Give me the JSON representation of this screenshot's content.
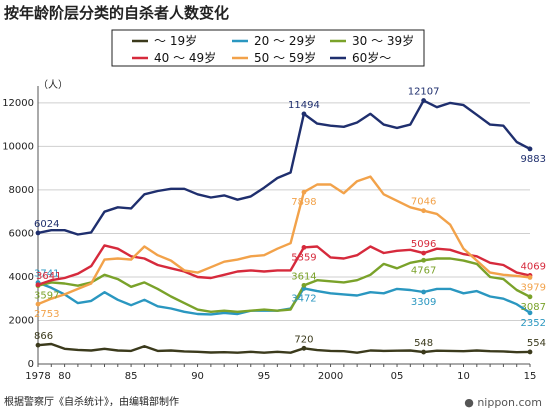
{
  "title": "按年龄阶层分类的自杀者人数变化",
  "source": "根据警察厅《自杀统计》，由编辑部制作",
  "brand": "● nippon.com",
  "chart_data": {
    "type": "line",
    "unit_label": "（人）",
    "ylim": [
      0,
      12500
    ],
    "yticks": [
      0,
      2000,
      4000,
      6000,
      8000,
      10000,
      12000
    ],
    "xlim": [
      1978,
      2015
    ],
    "xticks": [
      {
        "v": 1978,
        "label": "1978"
      },
      {
        "v": 1980,
        "label": "80"
      },
      {
        "v": 1985,
        "label": "85"
      },
      {
        "v": 1990,
        "label": "90"
      },
      {
        "v": 1995,
        "label": "95"
      },
      {
        "v": 2000,
        "label": "2000"
      },
      {
        "v": 2005,
        "label": "05"
      },
      {
        "v": 2010,
        "label": "10"
      },
      {
        "v": 2015,
        "label": "15"
      }
    ],
    "grid": true,
    "legend_position": "top",
    "x": [
      1978,
      1979,
      1980,
      1981,
      1982,
      1983,
      1984,
      1985,
      1986,
      1987,
      1988,
      1989,
      1990,
      1991,
      1992,
      1993,
      1994,
      1995,
      1996,
      1997,
      1998,
      1999,
      2000,
      2001,
      2002,
      2003,
      2004,
      2005,
      2006,
      2007,
      2008,
      2009,
      2010,
      2011,
      2012,
      2013,
      2014,
      2015
    ],
    "series": [
      {
        "name": "～ 19岁",
        "color": "#3b3a1c",
        "values": [
          866,
          920,
          700,
          650,
          620,
          700,
          620,
          600,
          820,
          600,
          620,
          580,
          560,
          530,
          540,
          520,
          560,
          520,
          560,
          520,
          720,
          640,
          600,
          590,
          520,
          620,
          600,
          610,
          620,
          548,
          610,
          600,
          590,
          620,
          590,
          580,
          540,
          554
        ]
      },
      {
        "name": "20 ～ 29岁",
        "color": "#2a97c0",
        "values": [
          3741,
          3500,
          3200,
          2800,
          2900,
          3300,
          2950,
          2700,
          2950,
          2650,
          2550,
          2400,
          2300,
          2280,
          2350,
          2300,
          2450,
          2450,
          2450,
          2550,
          3472,
          3350,
          3250,
          3200,
          3150,
          3300,
          3250,
          3450,
          3400,
          3309,
          3450,
          3450,
          3250,
          3350,
          3100,
          3000,
          2750,
          2352
        ]
      },
      {
        "name": "30 ～ 39岁",
        "color": "#7aa22a",
        "values": [
          3597,
          3750,
          3700,
          3600,
          3750,
          4100,
          3900,
          3550,
          3750,
          3450,
          3100,
          2800,
          2500,
          2400,
          2450,
          2400,
          2450,
          2500,
          2450,
          2500,
          3614,
          3850,
          3800,
          3750,
          3850,
          4100,
          4600,
          4400,
          4650,
          4767,
          4850,
          4850,
          4750,
          4600,
          4000,
          3900,
          3400,
          3087
        ]
      },
      {
        "name": "40 ～ 49岁",
        "color": "#d62a3c",
        "values": [
          3641,
          3850,
          3950,
          4150,
          4500,
          5450,
          5300,
          4950,
          4850,
          4550,
          4400,
          4250,
          4000,
          3950,
          4100,
          4250,
          4300,
          4250,
          4300,
          4300,
          5359,
          5400,
          4900,
          4850,
          5000,
          5400,
          5100,
          5200,
          5250,
          5096,
          5300,
          5250,
          5050,
          4950,
          4650,
          4550,
          4200,
          4069
        ]
      },
      {
        "name": "50 ～ 59岁",
        "color": "#f2a24a",
        "values": [
          2753,
          3000,
          3200,
          3450,
          3700,
          4800,
          4850,
          4800,
          5400,
          5000,
          4750,
          4300,
          4200,
          4450,
          4700,
          4800,
          4950,
          5000,
          5300,
          5550,
          7898,
          8250,
          8250,
          7850,
          8400,
          8614,
          7800,
          7500,
          7200,
          7046,
          6900,
          6400,
          5300,
          4750,
          4200,
          4100,
          4050,
          3979
        ]
      },
      {
        "name": "60岁～",
        "color": "#1f2f6e",
        "values": [
          6024,
          6150,
          6150,
          5950,
          6050,
          7000,
          7200,
          7150,
          7800,
          7950,
          8050,
          8050,
          7800,
          7650,
          7750,
          7550,
          7700,
          8100,
          8550,
          8800,
          11494,
          11050,
          10950,
          10900,
          11100,
          11500,
          11000,
          10850,
          11000,
          12107,
          11800,
          12000,
          11900,
          11450,
          11000,
          10950,
          10200,
          9883
        ]
      }
    ],
    "labels": [
      {
        "series": 0,
        "year": 1978,
        "text": "866",
        "pos": "above"
      },
      {
        "series": 0,
        "year": 1998,
        "text": "720",
        "pos": "above"
      },
      {
        "series": 0,
        "year": 2007,
        "text": "548",
        "pos": "above"
      },
      {
        "series": 0,
        "year": 2015,
        "text": "554",
        "pos": "above"
      },
      {
        "series": 1,
        "year": 1978,
        "text": "3741",
        "pos": "above"
      },
      {
        "series": 1,
        "year": 1998,
        "text": "3472",
        "pos": "below"
      },
      {
        "series": 1,
        "year": 2007,
        "text": "3309",
        "pos": "below"
      },
      {
        "series": 1,
        "year": 2015,
        "text": "2352",
        "pos": "below"
      },
      {
        "series": 2,
        "year": 1978,
        "text": "3597",
        "pos": "below"
      },
      {
        "series": 2,
        "year": 1998,
        "text": "3614",
        "pos": "above"
      },
      {
        "series": 2,
        "year": 2007,
        "text": "4767",
        "pos": "below"
      },
      {
        "series": 2,
        "year": 2015,
        "text": "3087",
        "pos": "below"
      },
      {
        "series": 3,
        "year": 1978,
        "text": "3641",
        "pos": "above-left"
      },
      {
        "series": 3,
        "year": 1998,
        "text": "5359",
        "pos": "below"
      },
      {
        "series": 3,
        "year": 2007,
        "text": "5096",
        "pos": "above"
      },
      {
        "series": 3,
        "year": 2015,
        "text": "4069",
        "pos": "above"
      },
      {
        "series": 4,
        "year": 1978,
        "text": "2753",
        "pos": "below"
      },
      {
        "series": 4,
        "year": 1998,
        "text": "7898",
        "pos": "below"
      },
      {
        "series": 4,
        "year": 2007,
        "text": "7046",
        "pos": "above"
      },
      {
        "series": 4,
        "year": 2015,
        "text": "3979",
        "pos": "below"
      },
      {
        "series": 5,
        "year": 1978,
        "text": "6024",
        "pos": "above"
      },
      {
        "series": 5,
        "year": 1998,
        "text": "11494",
        "pos": "above"
      },
      {
        "series": 5,
        "year": 2007,
        "text": "12107",
        "pos": "above"
      },
      {
        "series": 5,
        "year": 2015,
        "text": "9883",
        "pos": "below"
      }
    ]
  }
}
